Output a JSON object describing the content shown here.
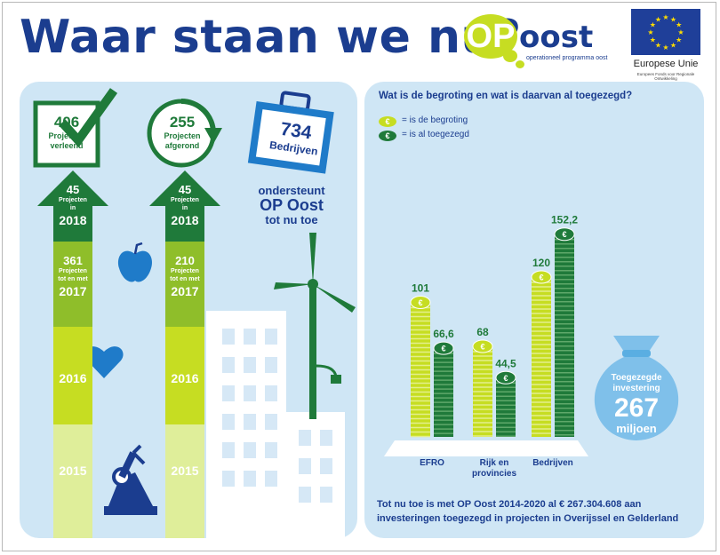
{
  "header": {
    "title": "Waar staan we nu?",
    "logo_op": "OP",
    "logo_oost": "oost",
    "logo_sub": "operationeel programma oost",
    "eu_title": "Europese Unie",
    "eu_sub": "Europees Fonds voor Regionale Ontwikkeling"
  },
  "colors": {
    "navy": "#1b3d8f",
    "lime": "#c6dd22",
    "green": "#1f7a3a",
    "light_green": "#8fbe2a",
    "panel": "#cfe6f5"
  },
  "left": {
    "verleend": {
      "value": "406",
      "label1": "Projecten",
      "label2": "verleend"
    },
    "afgerond": {
      "value": "255",
      "label1": "Projecten",
      "label2": "afgerond"
    },
    "bedrijven": {
      "value": "734",
      "label": "Bedrijven",
      "line1": "ondersteunt",
      "line2": "OP Oost",
      "line3": "tot nu toe"
    },
    "columns": [
      {
        "arrow_value": "45",
        "arrow_l1": "Projecten",
        "arrow_l2": "in",
        "arrow_year": "2018",
        "mid_value": "361",
        "mid_l1": "Projecten",
        "mid_l2": "tot en met",
        "mid_year": "2017",
        "year_2016": "2016",
        "year_2015": "2015"
      },
      {
        "arrow_value": "45",
        "arrow_l1": "Projecten",
        "arrow_l2": "in",
        "arrow_year": "2018",
        "mid_value": "210",
        "mid_l1": "Projecten",
        "mid_l2": "tot en met",
        "mid_year": "2017",
        "year_2016": "2016",
        "year_2015": "2015"
      }
    ]
  },
  "chart_data": {
    "type": "bar",
    "title": "Wat is de begroting en wat is daarvan al toegezegd?",
    "legend": [
      {
        "name": "= is de begroting",
        "color": "#c6dd22"
      },
      {
        "name": "= is al toegezegd",
        "color": "#1f7a3a"
      }
    ],
    "legend_symbol": "€",
    "categories": [
      "EFRO",
      "Rijk en provincies",
      "Bedrijven"
    ],
    "category_lines": [
      [
        "EFRO"
      ],
      [
        "Rijk en",
        "provincies"
      ],
      [
        "Bedrijven"
      ]
    ],
    "series": [
      {
        "name": "= is de begroting",
        "values": [
          101,
          68,
          120
        ],
        "labels": [
          "101",
          "68",
          "120"
        ]
      },
      {
        "name": "= is al toegezegd",
        "values": [
          66.6,
          44.5,
          152.2
        ],
        "labels": [
          "66,6",
          "44,5",
          "152,2"
        ]
      }
    ],
    "ylim": [
      0,
      160
    ]
  },
  "bag": {
    "line1": "Toegezegde",
    "line2": "investering",
    "value": "267",
    "unit": "miljoen"
  },
  "footer": {
    "line1": "Tot nu toe is met OP Oost 2014-2020 al € 267.304.608 aan",
    "line2": "investeringen toegezegd in projecten in Overijssel en Gelderland"
  }
}
